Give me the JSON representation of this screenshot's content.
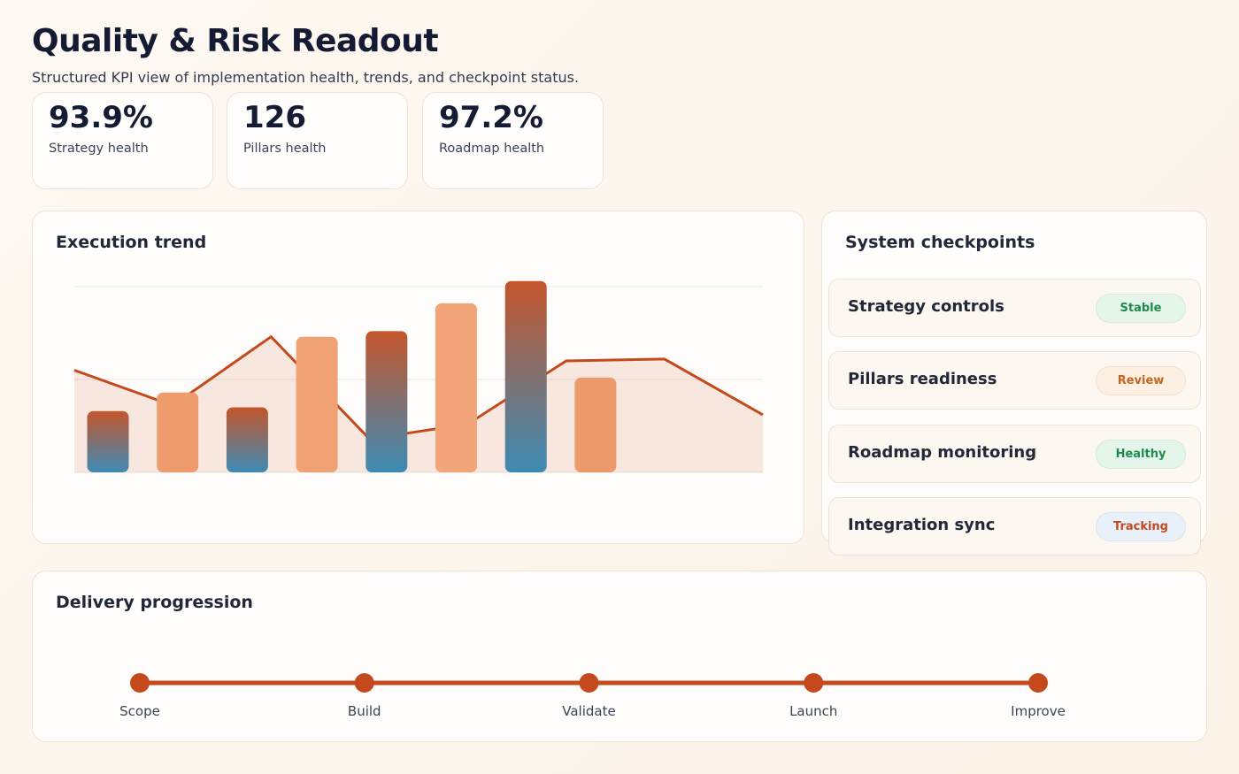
{
  "header": {
    "title": "Quality & Risk Readout",
    "subtitle": "Structured KPI view of implementation health, trends, and checkpoint status."
  },
  "kpis": [
    {
      "value": "93.9%",
      "label": "Strategy health"
    },
    {
      "value": "126",
      "label": "Pillars health"
    },
    {
      "value": "97.2%",
      "label": "Roadmap health"
    }
  ],
  "chart_data": {
    "type": "bar",
    "title": "Execution trend",
    "ylim": [
      0,
      100
    ],
    "yticks": [
      0,
      50,
      100
    ],
    "grid": true,
    "gradient": [
      "#c4552b",
      "#3d8bb5"
    ],
    "series": [
      {
        "type": "bar",
        "values": [
          33,
          43,
          35,
          73,
          76,
          91,
          103,
          51
        ],
        "colors": [
          "gradient",
          "#ee9c6e",
          "gradient",
          "#f0a274",
          "gradient",
          "#f1a578",
          "gradient",
          "#ec9a6c"
        ]
      },
      {
        "type": "line",
        "color": "#c4491c",
        "values": [
          55,
          36,
          73,
          18,
          26,
          60,
          61,
          31
        ]
      }
    ]
  },
  "checkpoints": {
    "title": "System checkpoints",
    "items": [
      {
        "name": "Strategy controls",
        "status": "Stable",
        "color": "#1f8a4c",
        "background": "#e3f6e9"
      },
      {
        "name": "Pillars readiness",
        "status": "Review",
        "color": "#c2651f",
        "background": "#fdf0e2"
      },
      {
        "name": "Roadmap monitoring",
        "status": "Healthy",
        "color": "#1f8a4c",
        "background": "#e3f6e9"
      },
      {
        "name": "Integration sync",
        "status": "Tracking",
        "color": "#c4491c",
        "background": "#e8f0fa"
      }
    ]
  },
  "delivery": {
    "title": "Delivery progression",
    "steps": [
      "Scope",
      "Build",
      "Validate",
      "Launch",
      "Improve"
    ]
  }
}
